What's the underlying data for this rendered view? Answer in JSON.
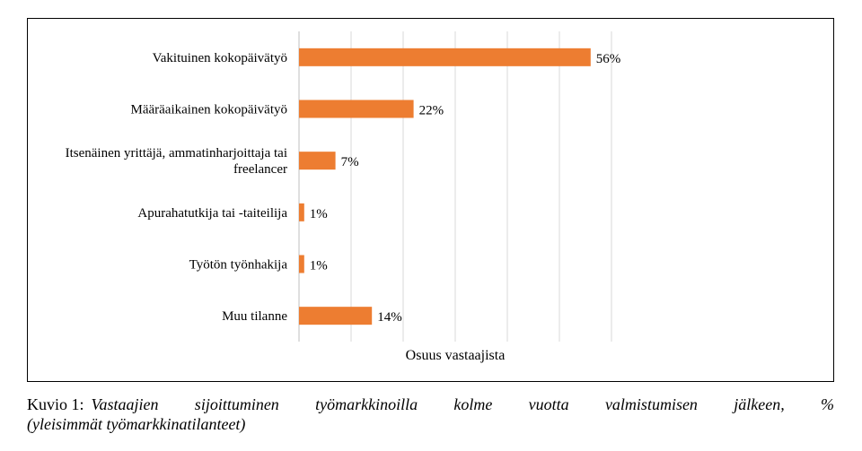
{
  "chart_data": {
    "type": "bar",
    "orientation": "horizontal",
    "categories": [
      [
        "Vakituinen kokopäivätyö"
      ],
      [
        "Määräaikainen kokopäivätyö"
      ],
      [
        "Itsenäinen yrittäjä, ammatinharjoittaja tai",
        "freelancer"
      ],
      [
        "Apurahatutkija tai -taiteilija"
      ],
      [
        "Työtön työnhakija"
      ],
      [
        "Muu tilanne"
      ]
    ],
    "values": [
      56,
      22,
      7,
      1,
      1,
      14
    ],
    "value_labels": [
      "56%",
      "22%",
      "7%",
      "1%",
      "1%",
      "14%"
    ],
    "xlabel": "Osuus vastaajista",
    "xlim": [
      0,
      60
    ],
    "grid": "vertical",
    "bar_color": "#ed7d31"
  },
  "caption": {
    "prefix": "Kuvio 1:",
    "title_line1": "Vastaajien sijoittuminen työmarkkinoilla kolme vuotta valmistumisen jälkeen, %",
    "title_line2": "(yleisimmät työmarkkinatilanteet)"
  }
}
